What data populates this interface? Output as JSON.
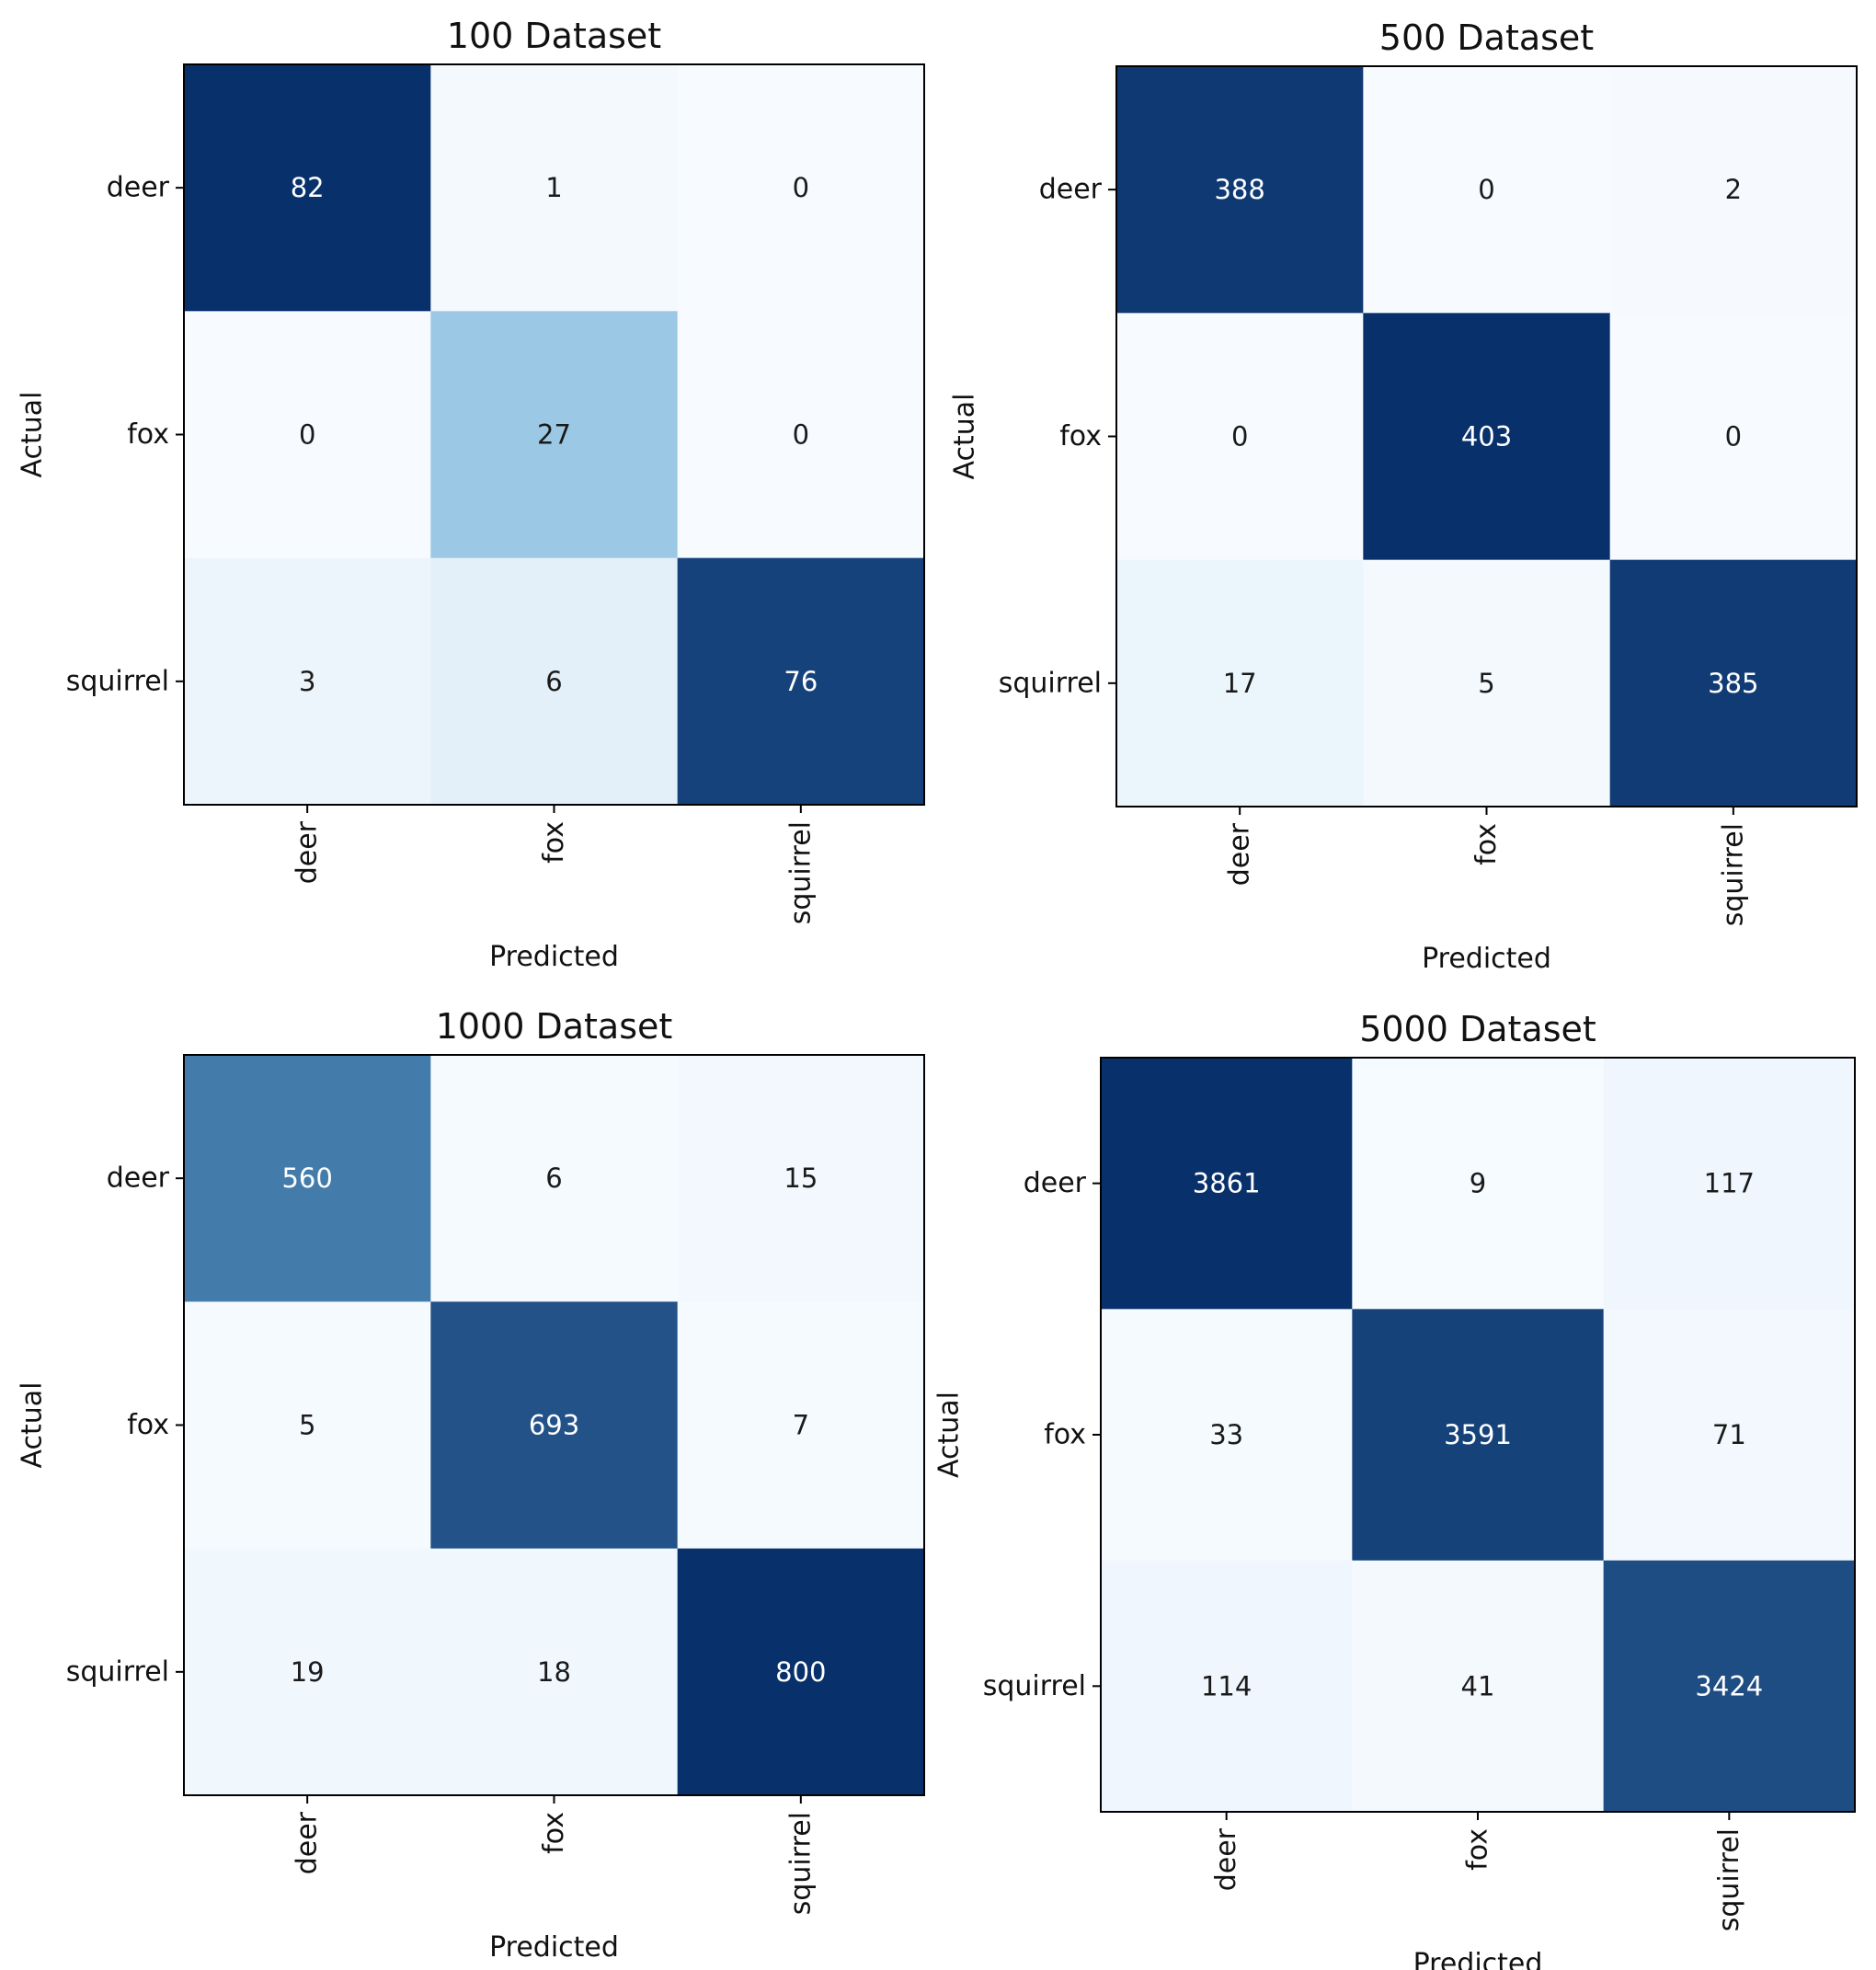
{
  "figure": {
    "cmap_light": "#f7fbff",
    "cmap_dark": "#08306b"
  },
  "chart_data": [
    {
      "type": "heatmap",
      "title": "100 Dataset",
      "xlabel": "Predicted",
      "ylabel": "Actual",
      "x_categories": [
        "deer",
        "fox",
        "squirrel"
      ],
      "y_categories": [
        "deer",
        "fox",
        "squirrel"
      ],
      "values": [
        [
          82,
          1,
          0
        ],
        [
          0,
          27,
          0
        ],
        [
          3,
          6,
          76
        ]
      ],
      "colorscale": "Blues",
      "grid": false
    },
    {
      "type": "heatmap",
      "title": "500 Dataset",
      "xlabel": "Predicted",
      "ylabel": "Actual",
      "x_categories": [
        "deer",
        "fox",
        "squirrel"
      ],
      "y_categories": [
        "deer",
        "fox",
        "squirrel"
      ],
      "values": [
        [
          388,
          0,
          2
        ],
        [
          0,
          403,
          0
        ],
        [
          17,
          5,
          385
        ]
      ],
      "colorscale": "Blues",
      "grid": false
    },
    {
      "type": "heatmap",
      "title": "1000 Dataset",
      "xlabel": "Predicted",
      "ylabel": "Actual",
      "x_categories": [
        "deer",
        "fox",
        "squirrel"
      ],
      "y_categories": [
        "deer",
        "fox",
        "squirrel"
      ],
      "values": [
        [
          560,
          6,
          15
        ],
        [
          5,
          693,
          7
        ],
        [
          19,
          18,
          800
        ]
      ],
      "colorscale": "Blues",
      "grid": false
    },
    {
      "type": "heatmap",
      "title": "5000 Dataset",
      "xlabel": "Predicted",
      "ylabel": "Actual",
      "x_categories": [
        "deer",
        "fox",
        "squirrel"
      ],
      "y_categories": [
        "deer",
        "fox",
        "squirrel"
      ],
      "values": [
        [
          3861,
          9,
          117
        ],
        [
          33,
          3591,
          71
        ],
        [
          114,
          41,
          3424
        ]
      ],
      "colorscale": "Blues",
      "grid": false
    }
  ]
}
